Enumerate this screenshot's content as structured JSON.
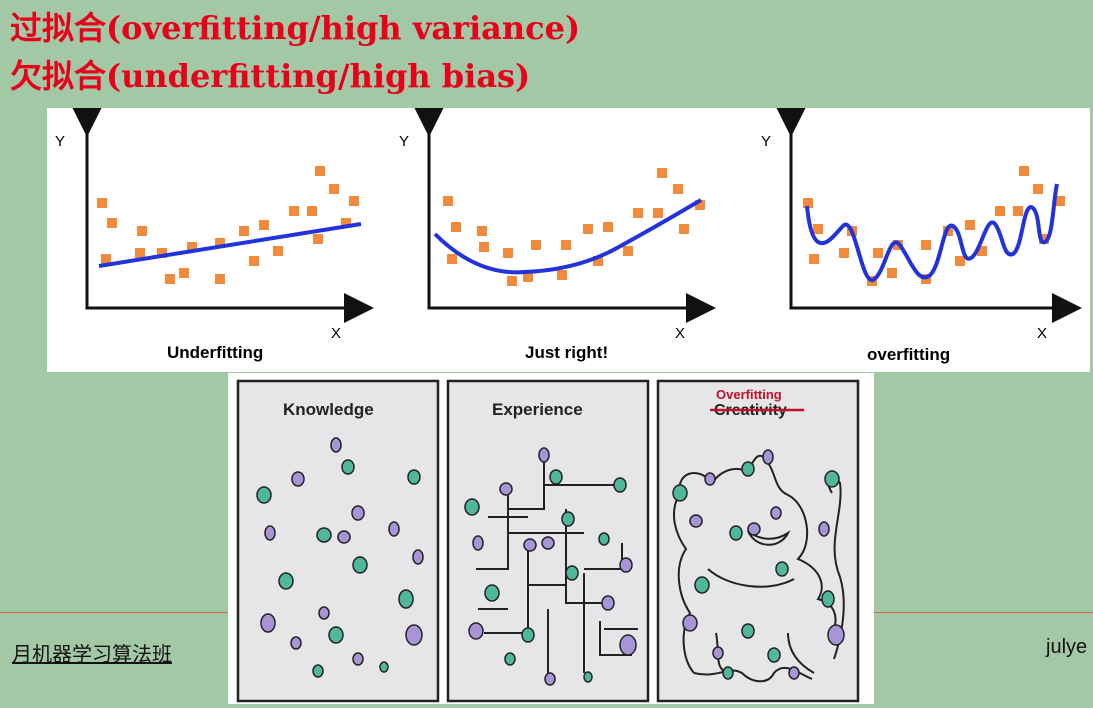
{
  "title_line1": "过拟合(overfitting/high variance)",
  "title_line2": "欠拟合(underfitting/high bias)",
  "fit_charts": [
    {
      "caption": "Underfitting",
      "x_axis": "X",
      "y_axis": "Y"
    },
    {
      "caption": "Just right!",
      "x_axis": "X",
      "y_axis": "Y"
    },
    {
      "caption": "overfitting",
      "x_axis": "X",
      "y_axis": "Y"
    }
  ],
  "comic": {
    "panel1": "Knowledge",
    "panel2": "Experience",
    "panel3_new": "Overfitting",
    "panel3_struck": "Creativity"
  },
  "footer": {
    "left": "月机器学习算法班",
    "right": "julye"
  },
  "colors": {
    "title": "#e8001a",
    "background": "#a3c8a6",
    "point": "#f28a3c",
    "curve": "#2233dd",
    "dot_teal": "#4fb79a",
    "dot_purple": "#a894d8"
  }
}
